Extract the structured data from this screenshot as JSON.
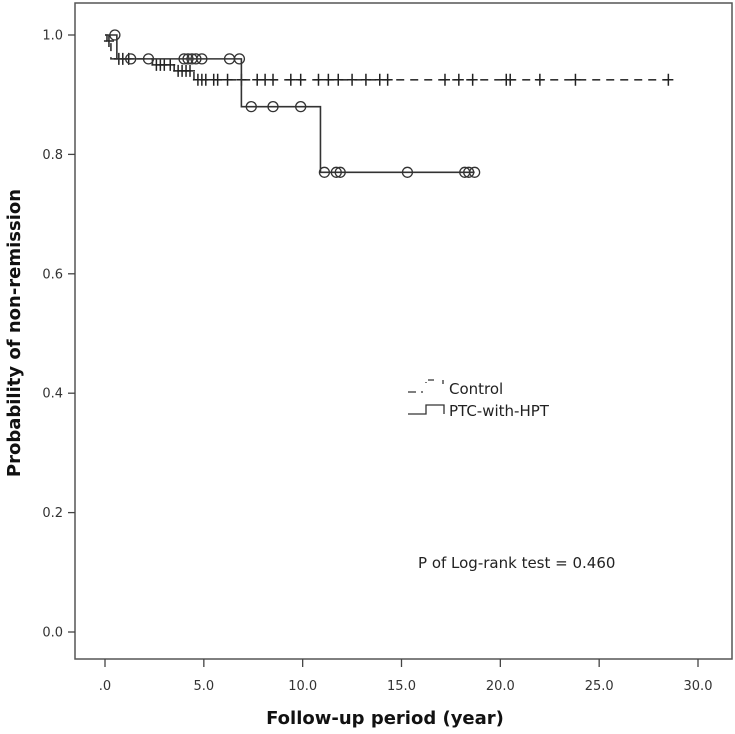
{
  "chart_data": {
    "type": "line",
    "subtype": "kaplan-meier",
    "title": "",
    "xlabel": "Follow-up period (year)",
    "ylabel": "Probability of non-remission",
    "xlim": [
      -1.5,
      31.5
    ],
    "ylim": [
      -0.05,
      1.05
    ],
    "x_ticks": [
      0,
      5,
      10,
      15,
      20,
      25,
      30
    ],
    "x_tick_labels": [
      ".0",
      "5.0",
      "10.0",
      "15.0",
      "20.0",
      "25.0",
      "30.0"
    ],
    "y_ticks": [
      0,
      0.2,
      0.4,
      0.6,
      0.8,
      1.0
    ],
    "y_tick_labels": [
      "0.0",
      "0.2",
      "0.4",
      "0.6",
      "0.8",
      "1.0"
    ],
    "grid": false,
    "legend_position": "center-right",
    "series": [
      {
        "name": "Control",
        "line_style": "dashed",
        "censor_marker": "plus",
        "steps": [
          {
            "x": 0.0,
            "y": 1.0
          },
          {
            "x": 0.1,
            "y": 0.99
          },
          {
            "x": 0.3,
            "y": 0.96
          },
          {
            "x": 2.4,
            "y": 0.95
          },
          {
            "x": 3.5,
            "y": 0.94
          },
          {
            "x": 4.5,
            "y": 0.925
          }
        ],
        "end_x": 28.5,
        "censored": [
          {
            "x": 0.2,
            "y": 0.99
          },
          {
            "x": 0.7,
            "y": 0.96
          },
          {
            "x": 0.9,
            "y": 0.96
          },
          {
            "x": 1.2,
            "y": 0.96
          },
          {
            "x": 2.6,
            "y": 0.95
          },
          {
            "x": 2.8,
            "y": 0.95
          },
          {
            "x": 3.0,
            "y": 0.95
          },
          {
            "x": 3.3,
            "y": 0.95
          },
          {
            "x": 3.7,
            "y": 0.94
          },
          {
            "x": 3.9,
            "y": 0.94
          },
          {
            "x": 4.1,
            "y": 0.94
          },
          {
            "x": 4.3,
            "y": 0.94
          },
          {
            "x": 4.7,
            "y": 0.925
          },
          {
            "x": 4.9,
            "y": 0.925
          },
          {
            "x": 5.1,
            "y": 0.925
          },
          {
            "x": 5.5,
            "y": 0.925
          },
          {
            "x": 5.7,
            "y": 0.925
          },
          {
            "x": 6.2,
            "y": 0.925
          },
          {
            "x": 6.9,
            "y": 0.925
          },
          {
            "x": 7.7,
            "y": 0.925
          },
          {
            "x": 8.1,
            "y": 0.925
          },
          {
            "x": 8.5,
            "y": 0.925
          },
          {
            "x": 9.4,
            "y": 0.925
          },
          {
            "x": 9.9,
            "y": 0.925
          },
          {
            "x": 10.8,
            "y": 0.925
          },
          {
            "x": 11.3,
            "y": 0.925
          },
          {
            "x": 11.8,
            "y": 0.925
          },
          {
            "x": 12.5,
            "y": 0.925
          },
          {
            "x": 13.2,
            "y": 0.925
          },
          {
            "x": 13.9,
            "y": 0.925
          },
          {
            "x": 14.3,
            "y": 0.925
          },
          {
            "x": 17.2,
            "y": 0.925
          },
          {
            "x": 17.9,
            "y": 0.925
          },
          {
            "x": 18.6,
            "y": 0.925
          },
          {
            "x": 20.3,
            "y": 0.925
          },
          {
            "x": 20.5,
            "y": 0.925
          },
          {
            "x": 22.0,
            "y": 0.925
          },
          {
            "x": 23.8,
            "y": 0.925
          },
          {
            "x": 28.5,
            "y": 0.925
          }
        ]
      },
      {
        "name": "PTC-with-HPT",
        "line_style": "solid",
        "censor_marker": "circle",
        "steps": [
          {
            "x": 0.0,
            "y": 1.0
          },
          {
            "x": 0.6,
            "y": 0.96
          },
          {
            "x": 6.9,
            "y": 0.88
          },
          {
            "x": 10.9,
            "y": 0.77
          }
        ],
        "end_x": 18.7,
        "censored": [
          {
            "x": 0.5,
            "y": 1.0
          },
          {
            "x": 1.3,
            "y": 0.96
          },
          {
            "x": 2.2,
            "y": 0.96
          },
          {
            "x": 4.0,
            "y": 0.96
          },
          {
            "x": 4.2,
            "y": 0.96
          },
          {
            "x": 4.4,
            "y": 0.96
          },
          {
            "x": 4.6,
            "y": 0.96
          },
          {
            "x": 4.9,
            "y": 0.96
          },
          {
            "x": 6.3,
            "y": 0.96
          },
          {
            "x": 6.8,
            "y": 0.96
          },
          {
            "x": 7.4,
            "y": 0.88
          },
          {
            "x": 8.5,
            "y": 0.88
          },
          {
            "x": 9.9,
            "y": 0.88
          },
          {
            "x": 11.1,
            "y": 0.77
          },
          {
            "x": 11.7,
            "y": 0.77
          },
          {
            "x": 11.9,
            "y": 0.77
          },
          {
            "x": 15.3,
            "y": 0.77
          },
          {
            "x": 18.2,
            "y": 0.77
          },
          {
            "x": 18.4,
            "y": 0.77
          },
          {
            "x": 18.7,
            "y": 0.77
          }
        ]
      }
    ],
    "legend": [
      {
        "label": "Control",
        "style": "dashed"
      },
      {
        "label": "PTC-with-HPT",
        "style": "solid"
      }
    ],
    "annotations": [
      {
        "text": "P of Log-rank test = 0.460",
        "x": 15.5,
        "y": 0.11
      }
    ]
  }
}
